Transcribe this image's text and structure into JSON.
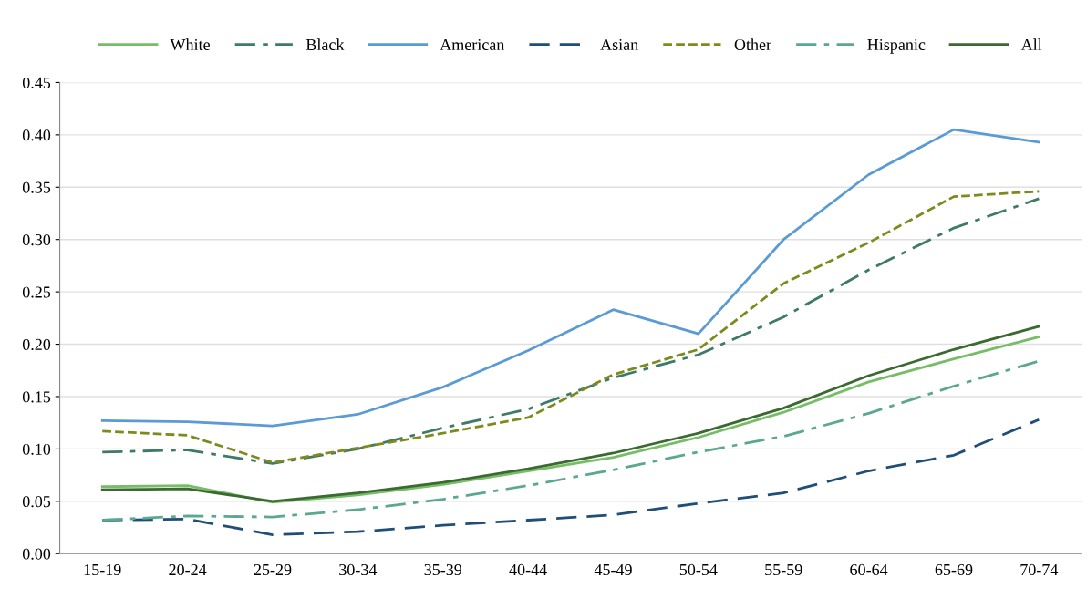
{
  "chart_data": {
    "type": "line",
    "categories": [
      "15-19",
      "20-24",
      "25-29",
      "30-34",
      "35-39",
      "40-44",
      "45-49",
      "50-54",
      "55-59",
      "60-64",
      "65-69",
      "70-74"
    ],
    "series": [
      {
        "name": "White",
        "color": "#77bd68",
        "line_style": "solid",
        "values": [
          0.064,
          0.065,
          0.049,
          0.056,
          0.066,
          0.079,
          0.092,
          0.111,
          0.135,
          0.164,
          0.186,
          0.207
        ]
      },
      {
        "name": "Black",
        "color": "#3d7a68",
        "line_style": "dashdot",
        "values": [
          0.097,
          0.099,
          0.086,
          0.1,
          0.12,
          0.138,
          0.168,
          0.19,
          0.226,
          0.271,
          0.311,
          0.339
        ]
      },
      {
        "name": "American",
        "color": "#5b9bd5",
        "line_style": "solid",
        "values": [
          0.127,
          0.126,
          0.122,
          0.133,
          0.159,
          0.194,
          0.233,
          0.21,
          0.3,
          0.362,
          0.405,
          0.393
        ]
      },
      {
        "name": "Asian",
        "color": "#1f4e79",
        "line_style": "dashed",
        "values": [
          0.032,
          0.033,
          0.018,
          0.021,
          0.027,
          0.032,
          0.037,
          0.048,
          0.058,
          0.079,
          0.094,
          0.128
        ]
      },
      {
        "name": "Other",
        "color": "#7f8a1c",
        "line_style": "dotted",
        "values": [
          0.117,
          0.113,
          0.087,
          0.101,
          0.115,
          0.13,
          0.171,
          0.195,
          0.258,
          0.297,
          0.341,
          0.346
        ]
      },
      {
        "name": "Hispanic",
        "color": "#5aa890",
        "line_style": "dashdot",
        "values": [
          0.032,
          0.036,
          0.035,
          0.042,
          0.052,
          0.065,
          0.08,
          0.097,
          0.112,
          0.134,
          0.16,
          0.184
        ]
      },
      {
        "name": "All",
        "color": "#3b6a30",
        "line_style": "solid",
        "values": [
          0.061,
          0.062,
          0.05,
          0.058,
          0.068,
          0.081,
          0.096,
          0.115,
          0.139,
          0.17,
          0.195,
          0.217
        ]
      }
    ],
    "ylim": [
      0,
      0.45
    ],
    "yticks": [
      {
        "value": 0,
        "label": "0.00"
      },
      {
        "value": 0.05,
        "label": "0.05"
      },
      {
        "value": 0.1,
        "label": "0.10"
      },
      {
        "value": 0.15,
        "label": "0.15"
      },
      {
        "value": 0.2,
        "label": "0.20"
      },
      {
        "value": 0.25,
        "label": "0.25"
      },
      {
        "value": 0.3,
        "label": "0.30"
      },
      {
        "value": 0.35,
        "label": "0.35"
      },
      {
        "value": 0.4,
        "label": "0.40"
      },
      {
        "value": 0.45,
        "label": "0.45"
      }
    ],
    "grid": "y",
    "legend": "top"
  }
}
